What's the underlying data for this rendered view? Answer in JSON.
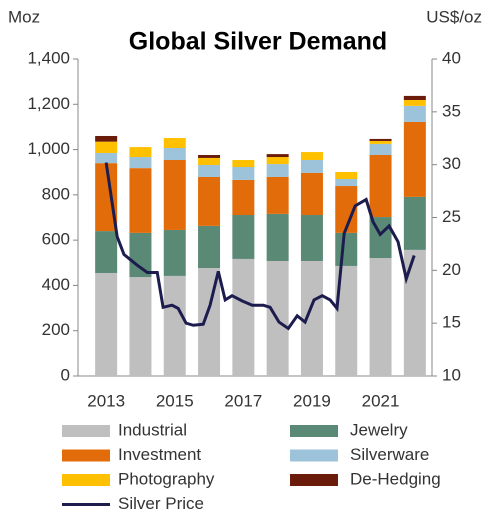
{
  "chart_data": {
    "type": "bar",
    "title": "Global Silver Demand",
    "y_label": "Moz",
    "y2_label": "US$/oz",
    "categories": [
      "2013",
      null,
      "2015",
      null,
      "2017",
      null,
      "2019",
      null,
      "2021",
      null
    ],
    "ylim": [
      0,
      1400
    ],
    "yticks": [
      0,
      200,
      400,
      600,
      800,
      {
        "value": 1000,
        "label": "1,000"
      },
      {
        "value": 1200,
        "label": "1,200"
      },
      {
        "value": 1400,
        "label": "1,400"
      }
    ],
    "y2lim": [
      10,
      40
    ],
    "y2ticks": [
      10,
      15,
      20,
      25,
      30,
      35,
      40
    ],
    "series": [
      {
        "name": "Industrial",
        "color": "#bfbfbf",
        "values": [
          455,
          437,
          442,
          477,
          517,
          508,
          508,
          486,
          521,
          557
        ]
      },
      {
        "name": "Jewelry",
        "color": "#5a8a75",
        "values": [
          185,
          195,
          203,
          186,
          194,
          208,
          203,
          146,
          181,
          234
        ]
      },
      {
        "name": "Investment",
        "color": "#e36c0a",
        "values": [
          300,
          286,
          309,
          216,
          155,
          163,
          186,
          207,
          274,
          331
        ]
      },
      {
        "name": "Silverware",
        "color": "#9cc3da",
        "values": [
          45,
          49,
          53,
          53,
          57,
          57,
          57,
          31,
          49,
          71
        ]
      },
      {
        "name": "Photography",
        "color": "#ffc000",
        "values": [
          50,
          44,
          44,
          31,
          31,
          31,
          35,
          31,
          13,
          26
        ]
      },
      {
        "name": "De-Hedging",
        "color": "#6a1b0a",
        "values": [
          25,
          0,
          0,
          13,
          0,
          13,
          0,
          0,
          9,
          18
        ]
      },
      {
        "name": "Silver Price",
        "color": "#1c1c4e",
        "type": "line",
        "axis": "y2",
        "x": [
          2013.0,
          2013.32,
          2013.52,
          2013.9,
          2014.2,
          2014.49,
          2014.66,
          2014.92,
          2015.1,
          2015.33,
          2015.54,
          2015.83,
          2016.03,
          2016.27,
          2016.47,
          2016.67,
          2016.97,
          2017.26,
          2017.58,
          2017.78,
          2018.04,
          2018.31,
          2018.57,
          2018.8,
          2019.06,
          2019.3,
          2019.53,
          2019.73,
          2019.94,
          2020.26,
          2020.58,
          2020.78,
          2020.99,
          2021.25,
          2021.51,
          2021.75,
          2021.98
        ],
        "values": [
          30.2,
          23.2,
          21.5,
          20.5,
          19.8,
          19.8,
          16.5,
          16.7,
          16.4,
          15.0,
          14.8,
          14.9,
          16.7,
          19.9,
          17.2,
          17.6,
          17.1,
          16.7,
          16.7,
          16.5,
          15.1,
          14.5,
          15.7,
          15.1,
          17.2,
          17.6,
          17.2,
          16.4,
          23.5,
          26.1,
          26.7,
          24.6,
          23.4,
          24.2,
          22.7,
          19.2,
          21.4
        ]
      }
    ]
  }
}
